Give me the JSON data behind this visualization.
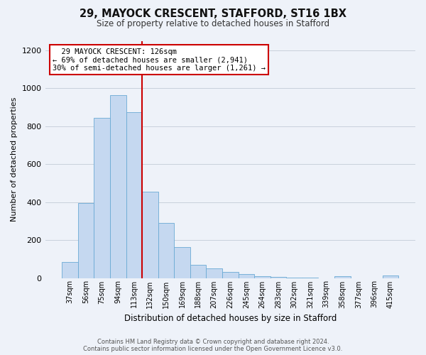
{
  "title_line1": "29, MAYOCK CRESCENT, STAFFORD, ST16 1BX",
  "title_line2": "Size of property relative to detached houses in Stafford",
  "xlabel": "Distribution of detached houses by size in Stafford",
  "ylabel": "Number of detached properties",
  "bar_labels": [
    "37sqm",
    "56sqm",
    "75sqm",
    "94sqm",
    "113sqm",
    "132sqm",
    "150sqm",
    "169sqm",
    "188sqm",
    "207sqm",
    "226sqm",
    "245sqm",
    "264sqm",
    "283sqm",
    "302sqm",
    "321sqm",
    "339sqm",
    "358sqm",
    "377sqm",
    "396sqm",
    "415sqm"
  ],
  "bar_values": [
    85,
    395,
    845,
    965,
    875,
    455,
    290,
    162,
    68,
    50,
    30,
    20,
    10,
    5,
    2,
    1,
    0,
    10,
    0,
    0,
    12
  ],
  "bar_color": "#c5d8f0",
  "bar_edgecolor": "#6aaad4",
  "vline_x_index": 4.5,
  "vline_color": "#cc0000",
  "annotation_text": "  29 MAYOCK CRESCENT: 126sqm\n← 69% of detached houses are smaller (2,941)\n30% of semi-detached houses are larger (1,261) →",
  "annotation_box_color": "#ffffff",
  "annotation_box_edgecolor": "#cc0000",
  "ylim": [
    0,
    1250
  ],
  "yticks": [
    0,
    200,
    400,
    600,
    800,
    1000,
    1200
  ],
  "footer_line1": "Contains HM Land Registry data © Crown copyright and database right 2024.",
  "footer_line2": "Contains public sector information licensed under the Open Government Licence v3.0.",
  "bg_color": "#eef2f9",
  "plot_bg_color": "#eef2f9",
  "grid_color": "#c8d0dc"
}
